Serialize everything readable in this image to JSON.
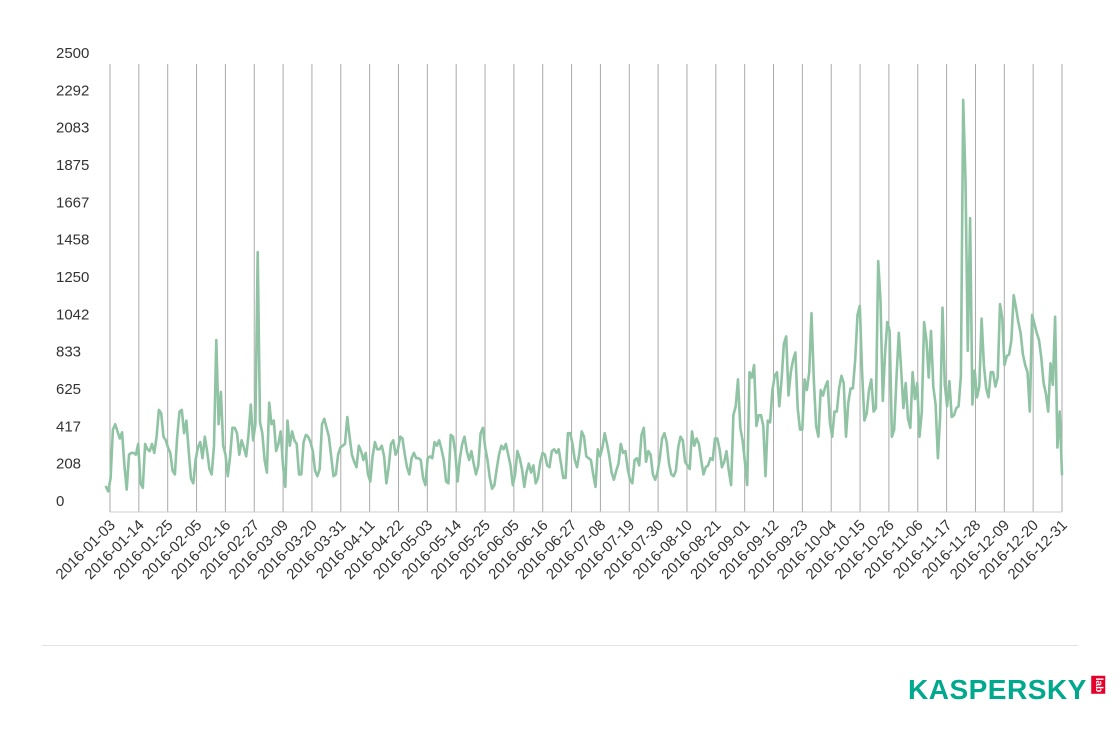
{
  "colors": {
    "line": "#8fc3a4",
    "grid": "#aaaaaa",
    "axis_text": "#333333",
    "brand_green": "#00a88e",
    "brand_red": "#e4002b"
  },
  "logo": {
    "wordmark": "KASPERSKY",
    "suffix": "lab"
  },
  "chart_data": {
    "type": "line",
    "title": "",
    "xlabel": "",
    "ylabel": "",
    "grid": "vertical",
    "ylim": [
      0,
      2500
    ],
    "yticks": [
      "2500",
      "2292",
      "2083",
      "1875",
      "1667",
      "1458",
      "1250",
      "1042",
      "833",
      "625",
      "417",
      "208",
      "0"
    ],
    "ytick_values": [
      2500,
      2292,
      2083,
      1875,
      1667,
      1458,
      1250,
      1042,
      833,
      625,
      417,
      208,
      0
    ],
    "xticks": [
      "2016-01-03",
      "2016-01-14",
      "2016-01-25",
      "2016-02-05",
      "2016-02-16",
      "2016-02-27",
      "2016-03-09",
      "2016-03-20",
      "2016-03-31",
      "2016-04-11",
      "2016-04-22",
      "2016-05-03",
      "2016-05-14",
      "2016-05-25",
      "2016-06-05",
      "2016-06-16",
      "2016-06-27",
      "2016-07-08",
      "2016-07-19",
      "2016-07-30",
      "2016-08-10",
      "2016-08-21",
      "2016-09-01",
      "2016-09-12",
      "2016-09-23",
      "2016-10-04",
      "2016-10-15",
      "2016-10-26",
      "2016-11-06",
      "2016-11-17",
      "2016-11-28",
      "2016-12-09",
      "2016-12-20",
      "2016-12-31"
    ],
    "series": [
      {
        "x_start": "2016-01-03",
        "x_end": "2016-12-31",
        "values": [
          140,
          115,
          190,
          460,
          490,
          450,
          410,
          445,
          260,
          125,
          320,
          330,
          330,
          320,
          380,
          160,
          135,
          380,
          350,
          340,
          380,
          330,
          420,
          570,
          550,
          420,
          400,
          360,
          330,
          230,
          210,
          420,
          560,
          570,
          440,
          510,
          340,
          185,
          160,
          290,
          360,
          390,
          300,
          420,
          340,
          240,
          210,
          370,
          960,
          490,
          670,
          370,
          320,
          200,
          310,
          470,
          470,
          440,
          320,
          400,
          360,
          310,
          430,
          600,
          400,
          490,
          1450,
          500,
          440,
          290,
          220,
          610,
          490,
          510,
          340,
          380,
          450,
          260,
          140,
          510,
          370,
          450,
          400,
          380,
          210,
          210,
          390,
          430,
          420,
          390,
          340,
          230,
          200,
          240,
          490,
          520,
          470,
          420,
          310,
          200,
          210,
          320,
          360,
          370,
          380,
          530,
          420,
          320,
          280,
          250,
          370,
          340,
          290,
          330,
          210,
          170,
          310,
          390,
          350,
          350,
          370,
          310,
          160,
          250,
          380,
          400,
          320,
          350,
          420,
          410,
          320,
          250,
          210,
          300,
          330,
          300,
          300,
          290,
          190,
          150,
          300,
          310,
          300,
          390,
          370,
          400,
          350,
          290,
          170,
          160,
          430,
          420,
          330,
          170,
          300,
          380,
          420,
          340,
          290,
          340,
          270,
          210,
          260,
          440,
          470,
          360,
          290,
          190,
          130,
          150,
          240,
          320,
          370,
          350,
          380,
          320,
          260,
          150,
          210,
          340,
          300,
          240,
          140,
          220,
          270,
          220,
          260,
          160,
          190,
          280,
          330,
          320,
          260,
          250,
          340,
          350,
          330,
          350,
          270,
          190,
          190,
          440,
          440,
          380,
          290,
          250,
          330,
          450,
          420,
          310,
          300,
          290,
          210,
          140,
          350,
          310,
          360,
          440,
          380,
          310,
          220,
          180,
          230,
          270,
          380,
          330,
          340,
          240,
          180,
          160,
          290,
          300,
          260,
          430,
          470,
          280,
          340,
          320,
          210,
          180,
          220,
          300,
          410,
          440,
          390,
          270,
          210,
          200,
          230,
          360,
          420,
          400,
          280,
          260,
          240,
          450,
          370,
          410,
          380,
          290,
          210,
          250,
          260,
          300,
          290,
          410,
          410,
          350,
          250,
          280,
          340,
          230,
          150,
          540,
          590,
          740,
          470,
          400,
          280,
          150,
          780,
          750,
          820,
          480,
          540,
          540,
          480,
          200,
          510,
          500,
          680,
          760,
          780,
          590,
          740,
          940,
          980,
          650,
          780,
          850,
          890,
          580,
          460,
          460,
          740,
          680,
          780,
          1110,
          740,
          480,
          420,
          680,
          650,
          700,
          730,
          500,
          420,
          560,
          560,
          690,
          760,
          720,
          420,
          610,
          690,
          690,
          850,
          1100,
          1150,
          780,
          510,
          550,
          680,
          740,
          560,
          580,
          1400,
          1180,
          620,
          880,
          1060,
          1010,
          420,
          460,
          750,
          1000,
          800,
          580,
          720,
          520,
          470,
          780,
          630,
          720,
          420,
          560,
          1060,
          960,
          750,
          1010,
          700,
          600,
          300,
          540,
          1140,
          710,
          590,
          730,
          530,
          540,
          580,
          590,
          760,
          2300,
          1850,
          900,
          1640,
          600,
          790,
          640,
          700,
          1080,
          820,
          690,
          640,
          780,
          780,
          700,
          750,
          1160,
          1080,
          820,
          870,
          880,
          960,
          1210,
          1140,
          1060,
          1000,
          880,
          820,
          780,
          560,
          1100,
          1050,
          1000,
          960,
          860,
          720,
          660,
          560,
          830,
          710,
          1090,
          360,
          560,
          210
        ]
      }
    ]
  }
}
